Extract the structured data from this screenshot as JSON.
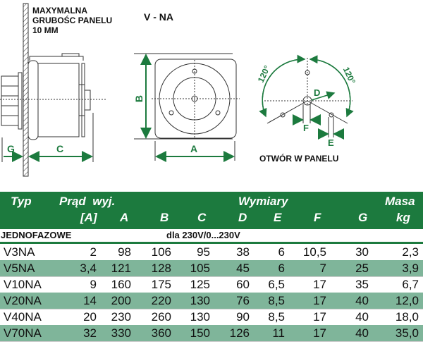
{
  "diagram": {
    "panel_note": [
      "MAXYMALNA",
      "GRUBOŚC PANELU",
      "10 MM"
    ],
    "model_title": "V - NA",
    "dim_labels": {
      "A": "A",
      "B": "B",
      "C": "C",
      "D": "D",
      "E": "E",
      "F": "F",
      "G": "G"
    },
    "angle_left": "120°",
    "angle_right": "120°",
    "hole_caption": "OTWÓR W PANELU",
    "accent_color": "#1c7a3e"
  },
  "table": {
    "header": {
      "typ": "Typ",
      "prad": "Prąd  wyj.",
      "wymiary": "Wymiary",
      "masa": "Masa",
      "unit_a": "[A]",
      "cols": [
        "A",
        "B",
        "C",
        "D",
        "E",
        "F",
        "G"
      ],
      "kg": "kg"
    },
    "section": {
      "label": "JEDNOFAZOWE",
      "voltage": "dla 230V/0...230V"
    },
    "rows": [
      [
        "V3NA",
        "2",
        "98",
        "106",
        "95",
        "38",
        "6",
        "10,5",
        "30",
        "2,3"
      ],
      [
        "V5NA",
        "3,4",
        "121",
        "128",
        "105",
        "45",
        "6",
        "7",
        "25",
        "3,9"
      ],
      [
        "V10NA",
        "9",
        "160",
        "175",
        "125",
        "60",
        "6,5",
        "17",
        "35",
        "6,7"
      ],
      [
        "V20NA",
        "14",
        "200",
        "220",
        "130",
        "76",
        "8,5",
        "17",
        "40",
        "12,0"
      ],
      [
        "V40NA",
        "20",
        "230",
        "260",
        "130",
        "90",
        "8,5",
        "17",
        "40",
        "18,0"
      ],
      [
        "V70NA",
        "32",
        "330",
        "360",
        "150",
        "126",
        "11",
        "17",
        "40",
        "35,0"
      ]
    ],
    "header_color": "#1c7a3e",
    "band_color": "#7fb59a"
  }
}
